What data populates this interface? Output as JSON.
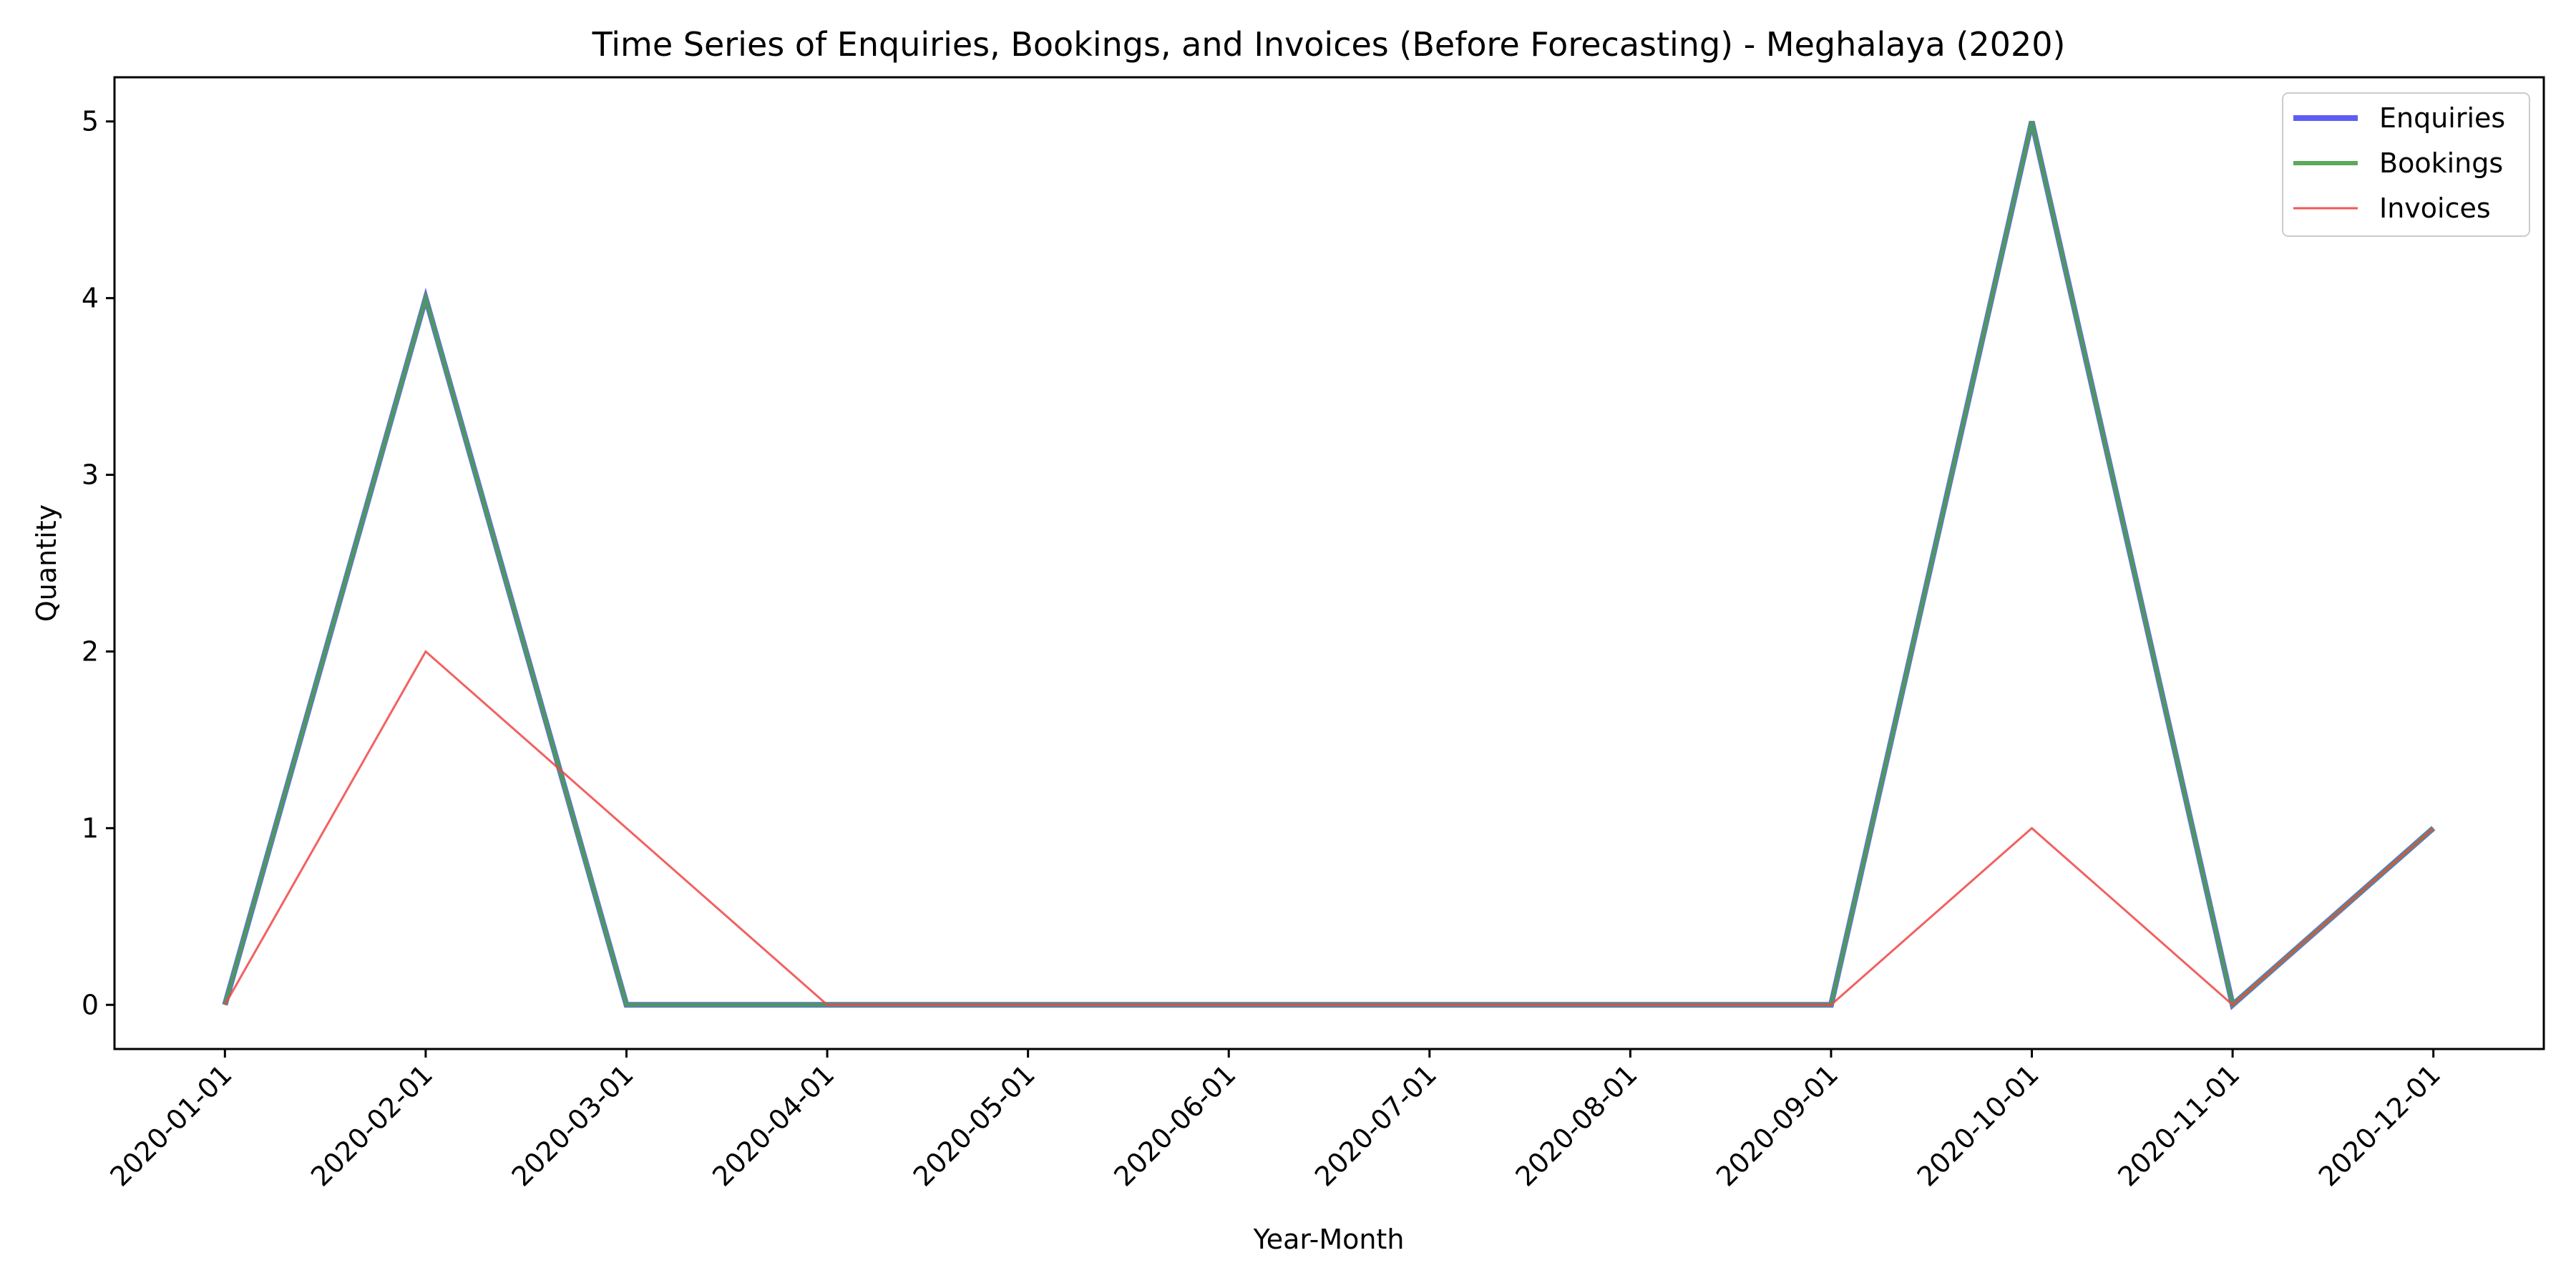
{
  "chart_data": {
    "type": "line",
    "title": "Time Series of Enquiries, Bookings, and Invoices (Before Forecasting) - Meghalaya (2020)",
    "xlabel": "Year-Month",
    "ylabel": "Quantity",
    "x": [
      "2020-01-01",
      "2020-02-01",
      "2020-03-01",
      "2020-04-01",
      "2020-05-01",
      "2020-06-01",
      "2020-07-01",
      "2020-08-01",
      "2020-09-01",
      "2020-10-01",
      "2020-11-01",
      "2020-12-01"
    ],
    "yticks": [
      0,
      1,
      2,
      3,
      4,
      5
    ],
    "ylim": [
      -0.25,
      5.25
    ],
    "grid": false,
    "legend_position": "top-right",
    "series": [
      {
        "name": "Enquiries",
        "color": "#4b4bf5",
        "values": [
          0,
          4,
          0,
          0,
          0,
          0,
          0,
          0,
          0,
          5,
          0,
          1
        ]
      },
      {
        "name": "Bookings",
        "color": "#4aa04a",
        "values": [
          0,
          4,
          0,
          0,
          0,
          0,
          0,
          0,
          0,
          5,
          0,
          1
        ]
      },
      {
        "name": "Invoices",
        "color": "#f04545",
        "values": [
          0,
          2,
          1,
          0,
          0,
          0,
          0,
          0,
          0,
          1,
          0,
          1
        ]
      }
    ]
  }
}
